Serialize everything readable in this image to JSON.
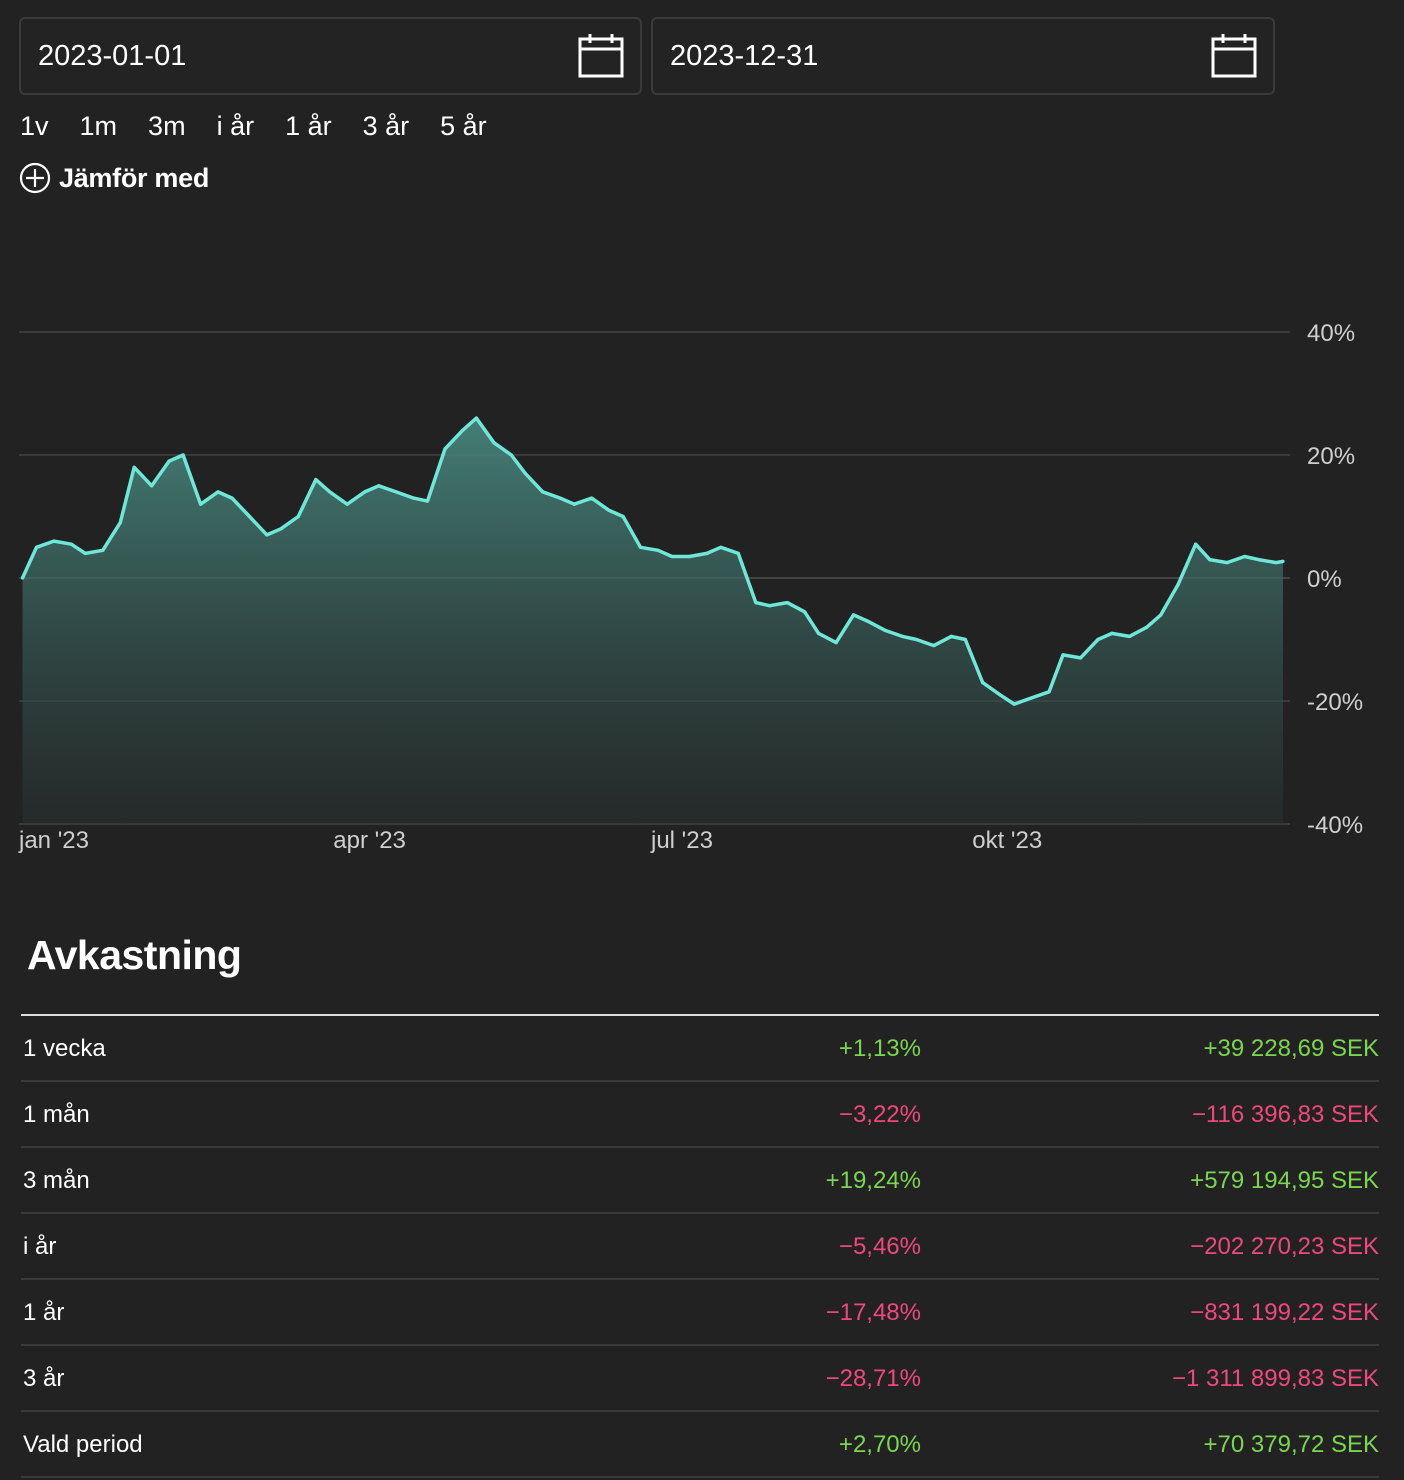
{
  "date_range": {
    "from": "2023-01-01",
    "to": "2023-12-31"
  },
  "period_buttons": [
    "1v",
    "1m",
    "3m",
    "i år",
    "1 år",
    "3 år",
    "5 år"
  ],
  "compare_label": "Jämför med",
  "colors": {
    "background": "#222222",
    "line": "#6ee7d8",
    "positive": "#7bd64f",
    "negative": "#f0487c",
    "grid": "#3a3a3a"
  },
  "chart_data": {
    "type": "area",
    "title": "",
    "xlabel": "",
    "ylabel": "",
    "x_tick_labels": [
      "jan '23",
      "apr '23",
      "jul '23",
      "okt '23"
    ],
    "y_tick_labels": [
      "40%",
      "20%",
      "0%",
      "-20%",
      "-40%"
    ],
    "ylim": [
      -40,
      40
    ],
    "grid": true,
    "y_axis_position": "right",
    "series": [
      {
        "x": [
          "2023-01-02",
          "2023-01-06",
          "2023-01-11",
          "2023-01-16",
          "2023-01-20",
          "2023-01-25",
          "2023-01-30",
          "2023-02-03",
          "2023-02-08",
          "2023-02-13",
          "2023-02-17",
          "2023-02-22",
          "2023-02-27",
          "2023-03-03",
          "2023-03-08",
          "2023-03-13",
          "2023-03-17",
          "2023-03-22",
          "2023-03-27",
          "2023-03-31",
          "2023-04-05",
          "2023-04-10",
          "2023-04-14",
          "2023-04-19",
          "2023-04-24",
          "2023-04-28",
          "2023-05-03",
          "2023-05-08",
          "2023-05-12",
          "2023-05-17",
          "2023-05-22",
          "2023-05-26",
          "2023-05-31",
          "2023-06-05",
          "2023-06-09",
          "2023-06-14",
          "2023-06-19",
          "2023-06-23",
          "2023-06-28",
          "2023-07-03",
          "2023-07-07",
          "2023-07-12",
          "2023-07-17",
          "2023-07-21",
          "2023-07-26",
          "2023-07-31",
          "2023-08-04",
          "2023-08-09",
          "2023-08-14",
          "2023-08-18",
          "2023-08-23",
          "2023-08-28",
          "2023-09-01",
          "2023-09-06",
          "2023-09-11",
          "2023-09-15",
          "2023-09-20",
          "2023-09-25",
          "2023-09-29",
          "2023-10-04",
          "2023-10-09",
          "2023-10-13",
          "2023-10-18",
          "2023-10-23",
          "2023-10-27",
          "2023-11-01",
          "2023-11-06",
          "2023-11-10",
          "2023-11-15",
          "2023-11-20",
          "2023-11-24",
          "2023-11-29",
          "2023-12-04",
          "2023-12-08",
          "2023-12-13",
          "2023-12-18",
          "2023-12-22",
          "2023-12-27",
          "2023-12-29"
        ],
        "values": [
          0.0,
          5.0,
          6.0,
          5.5,
          4.0,
          4.5,
          9.0,
          18.0,
          15.0,
          19.0,
          20.0,
          12.0,
          14.0,
          13.0,
          10.0,
          7.0,
          8.0,
          10.0,
          16.0,
          14.0,
          12.0,
          14.0,
          15.0,
          14.0,
          13.0,
          12.5,
          21.0,
          24.0,
          26.0,
          22.0,
          20.0,
          17.0,
          14.0,
          13.0,
          12.0,
          13.0,
          11.0,
          10.0,
          5.0,
          4.5,
          3.5,
          3.5,
          4.0,
          5.0,
          4.0,
          -4.0,
          -4.5,
          -4.0,
          -5.5,
          -9.0,
          -10.5,
          -6.0,
          -7.0,
          -8.5,
          -9.5,
          -10.0,
          -11.0,
          -9.5,
          -10.0,
          -17.0,
          -19.0,
          -20.5,
          -19.5,
          -18.5,
          -12.5,
          -13.0,
          -10.0,
          -9.0,
          -9.5,
          -8.0,
          -6.0,
          -1.0,
          5.5,
          3.0,
          2.5,
          3.5,
          3.0,
          2.5,
          2.7
        ]
      }
    ]
  },
  "returns": {
    "title": "Avkastning",
    "rows": [
      {
        "label": "1 vecka",
        "pct": "+1,13%",
        "amount": "+39 228,69 SEK",
        "positive": true
      },
      {
        "label": "1 mån",
        "pct": "−3,22%",
        "amount": "−116 396,83 SEK",
        "positive": false
      },
      {
        "label": "3 mån",
        "pct": "+19,24%",
        "amount": "+579 194,95 SEK",
        "positive": true
      },
      {
        "label": "i år",
        "pct": "−5,46%",
        "amount": "−202 270,23 SEK",
        "positive": false
      },
      {
        "label": "1 år",
        "pct": "−17,48%",
        "amount": "−831 199,22 SEK",
        "positive": false
      },
      {
        "label": "3 år",
        "pct": "−28,71%",
        "amount": "−1 311 899,83 SEK",
        "positive": false
      },
      {
        "label": "Vald period",
        "pct": "+2,70%",
        "amount": "+70 379,72 SEK",
        "positive": true
      }
    ]
  }
}
